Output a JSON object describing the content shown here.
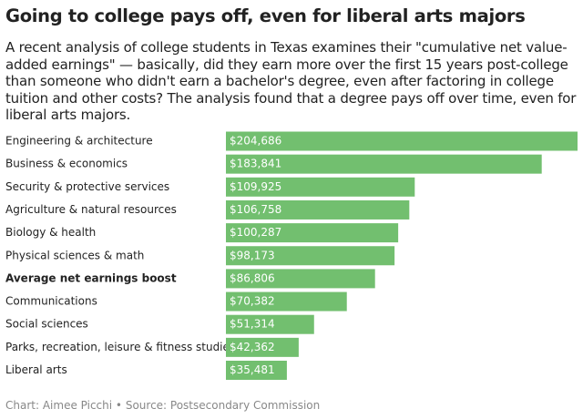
{
  "chart_data": {
    "type": "bar",
    "orientation": "horizontal",
    "title": "Going to college pays off, even for liberal arts majors",
    "subtitle": "A recent analysis of college students in Texas examines their \"cumulative net value-added earnings\" — basically, did they earn more over the first 15 years post-college than someone who didn't earn a bachelor's degree, even after factoring in college tuition and other costs? The analysis found that a degree pays off over time, even for liberal arts majors.",
    "categories": [
      "Engineering & architecture",
      "Business & economics",
      "Security & protective services",
      "Agriculture & natural resources",
      "Biology & health",
      "Physical sciences & math",
      "Average net earnings boost",
      "Communications",
      "Social sciences",
      "Parks, recreation, leisure & fitness studies",
      "Liberal arts"
    ],
    "values": [
      204686,
      183841,
      109925,
      106758,
      100287,
      98173,
      86806,
      70382,
      51314,
      42362,
      35481
    ],
    "value_labels": [
      "$204,686",
      "$183,841",
      "$109,925",
      "$106,758",
      "$100,287",
      "$98,173",
      "$86,806",
      "$70,382",
      "$51,314",
      "$42,362",
      "$35,481"
    ],
    "color": "#72bf6f",
    "bold_category": 6,
    "credit": "Chart: Aimee Picchi",
    "source": "Source: Postsecondary Commission"
  }
}
